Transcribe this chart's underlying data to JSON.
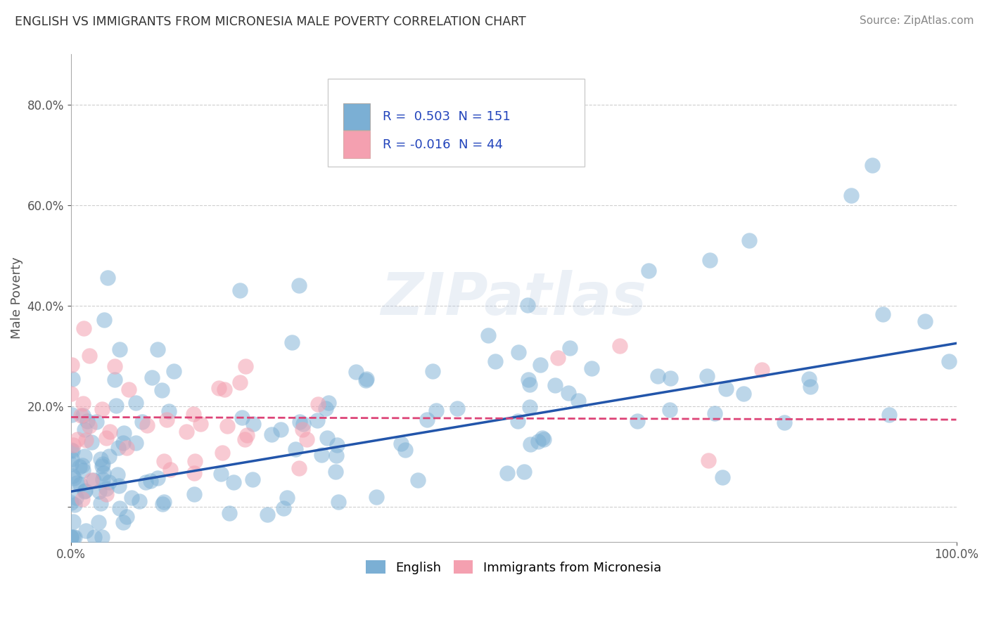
{
  "title": "ENGLISH VS IMMIGRANTS FROM MICRONESIA MALE POVERTY CORRELATION CHART",
  "source": "Source: ZipAtlas.com",
  "ylabel": "Male Poverty",
  "xlim": [
    0,
    1
  ],
  "ylim": [
    -0.07,
    0.9
  ],
  "yticks": [
    0.0,
    0.2,
    0.4,
    0.6,
    0.8
  ],
  "xticks": [
    0.0,
    1.0
  ],
  "legend_R1": "0.503",
  "legend_N1": "151",
  "legend_R2": "-0.016",
  "legend_N2": "44",
  "blue_color": "#7BAFD4",
  "pink_color": "#F4A0B0",
  "blue_line_color": "#2255AA",
  "pink_line_color": "#DD4477",
  "watermark": "ZIPatlas",
  "background_color": "#FFFFFF",
  "grid_color": "#BBBBBB",
  "title_color": "#333333",
  "label_color": "#555555",
  "legend_text_color": "#2244BB",
  "seed": 7,
  "english_n": 151,
  "micronesia_n": 44
}
